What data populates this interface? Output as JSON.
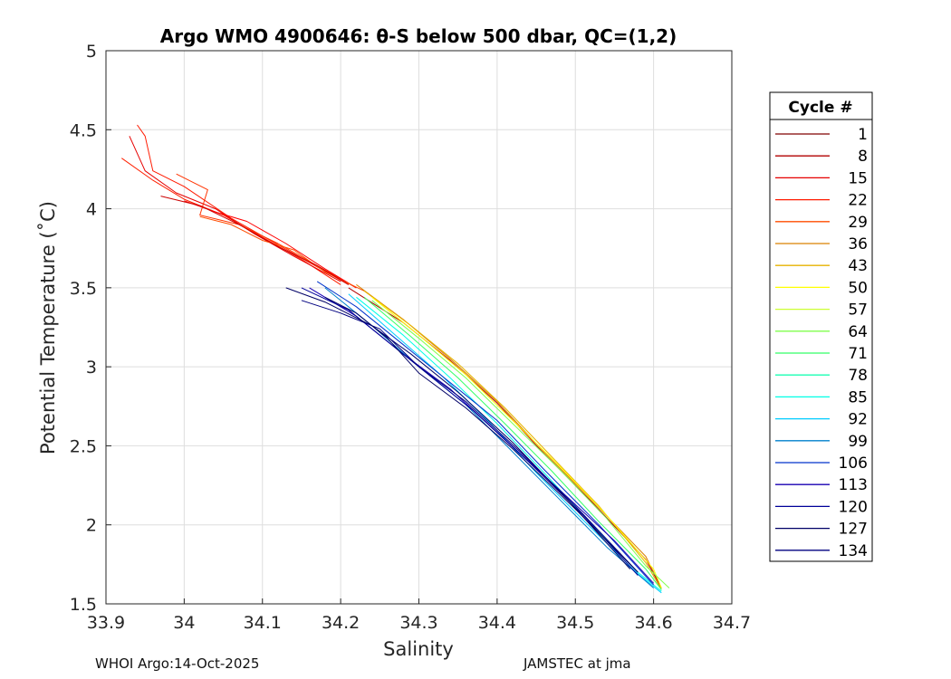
{
  "footer": {
    "left": "WHOI Argo:14-Oct-2025",
    "right": "JAMSTEC at jma"
  },
  "chart_data": {
    "type": "line",
    "title": "Argo WMO 4900646: θ-S below 500 dbar,  QC=(1,2)",
    "xlabel": "Salinity",
    "ylabel": "Potential Temperature (˚C)",
    "xlim": [
      33.9,
      34.7
    ],
    "ylim": [
      1.5,
      5
    ],
    "xticks": [
      33.9,
      34.0,
      34.1,
      34.2,
      34.3,
      34.4,
      34.5,
      34.6,
      34.7
    ],
    "xtick_labels": [
      "33.9",
      "34",
      "34.1",
      "34.2",
      "34.3",
      "34.4",
      "34.5",
      "34.6",
      "34.7"
    ],
    "yticks": [
      1.5,
      2,
      2.5,
      3,
      3.5,
      4,
      4.5,
      5
    ],
    "ytick_labels": [
      "1.5",
      "2",
      "2.5",
      "3",
      "3.5",
      "4",
      "4.5",
      "5"
    ],
    "grid": true,
    "legend": {
      "title": "Cycle #",
      "placement": "right",
      "entries": [
        {
          "label": "1",
          "color": "#800000"
        },
        {
          "label": "8",
          "color": "#b20000"
        },
        {
          "label": "15",
          "color": "#e60000"
        },
        {
          "label": "22",
          "color": "#ff1a00"
        },
        {
          "label": "29",
          "color": "#ff4d00"
        },
        {
          "label": "36",
          "color": "#d98000"
        },
        {
          "label": "43",
          "color": "#e6b300"
        },
        {
          "label": "50",
          "color": "#ffff00"
        },
        {
          "label": "57",
          "color": "#ccff33"
        },
        {
          "label": "64",
          "color": "#80ff4d"
        },
        {
          "label": "71",
          "color": "#33ff66"
        },
        {
          "label": "78",
          "color": "#1affb3"
        },
        {
          "label": "85",
          "color": "#00ffe6"
        },
        {
          "label": "92",
          "color": "#00ccff"
        },
        {
          "label": "99",
          "color": "#0080cc"
        },
        {
          "label": "106",
          "color": "#0033cc"
        },
        {
          "label": "113",
          "color": "#1a00b3"
        },
        {
          "label": "120",
          "color": "#000099"
        },
        {
          "label": "127",
          "color": "#000066"
        },
        {
          "label": "134",
          "color": "#000080"
        }
      ]
    },
    "series": [
      {
        "color": "#ff2000",
        "x": [
          33.92,
          33.96,
          34.0,
          34.05,
          34.1,
          34.15,
          34.2
        ],
        "y": [
          4.32,
          4.18,
          4.06,
          3.96,
          3.82,
          3.68,
          3.52
        ]
      },
      {
        "color": "#e60000",
        "x": [
          33.93,
          33.95,
          33.99,
          34.04,
          34.09,
          34.14,
          34.2
        ],
        "y": [
          4.46,
          4.24,
          4.1,
          4.0,
          3.84,
          3.7,
          3.54
        ]
      },
      {
        "color": "#ff1a00",
        "x": [
          33.94,
          33.95,
          33.96,
          34.0,
          34.06,
          34.11,
          34.16,
          34.21
        ],
        "y": [
          4.53,
          4.46,
          4.24,
          4.14,
          3.94,
          3.8,
          3.66,
          3.52
        ]
      },
      {
        "color": "#ff3300",
        "x": [
          33.99,
          34.03,
          34.02,
          34.07,
          34.12,
          34.17,
          34.22
        ],
        "y": [
          4.22,
          4.12,
          3.96,
          3.9,
          3.78,
          3.64,
          3.5
        ]
      },
      {
        "color": "#ff0000",
        "x": [
          34.0,
          34.04,
          34.08,
          34.13,
          34.18,
          34.22
        ],
        "y": [
          4.05,
          3.98,
          3.92,
          3.78,
          3.62,
          3.5
        ]
      },
      {
        "color": "#ff4d00",
        "x": [
          34.02,
          34.06,
          34.1,
          34.14,
          34.18,
          34.23
        ],
        "y": [
          3.95,
          3.9,
          3.8,
          3.74,
          3.6,
          3.48
        ]
      },
      {
        "color": "#cc0000",
        "x": [
          33.97,
          34.02,
          34.07,
          34.12,
          34.17,
          34.21
        ],
        "y": [
          4.08,
          4.02,
          3.9,
          3.76,
          3.64,
          3.52
        ]
      },
      {
        "color": "#d98000",
        "x": [
          34.22,
          34.28,
          34.34,
          34.4,
          34.46,
          34.52,
          34.59,
          34.61
        ],
        "y": [
          3.52,
          3.3,
          3.05,
          2.78,
          2.46,
          2.16,
          1.8,
          1.6
        ]
      },
      {
        "color": "#b20000",
        "x": [
          34.21,
          34.28,
          34.34,
          34.4,
          34.46,
          34.52,
          34.59,
          34.61
        ],
        "y": [
          3.5,
          3.28,
          3.04,
          2.77,
          2.45,
          2.15,
          1.78,
          1.6
        ]
      },
      {
        "color": "#e6b300",
        "x": [
          34.23,
          34.29,
          34.35,
          34.41,
          34.47,
          34.53,
          34.59,
          34.61
        ],
        "y": [
          3.48,
          3.26,
          3.02,
          2.74,
          2.43,
          2.12,
          1.76,
          1.59
        ]
      },
      {
        "color": "#ffff00",
        "x": [
          34.24,
          34.3,
          34.36,
          34.42,
          34.48,
          34.54,
          34.6,
          34.61
        ],
        "y": [
          3.44,
          3.2,
          2.95,
          2.66,
          2.37,
          2.06,
          1.72,
          1.6
        ]
      },
      {
        "color": "#80ff4d",
        "x": [
          34.24,
          34.3,
          34.36,
          34.42,
          34.48,
          34.54,
          34.59,
          34.62
        ],
        "y": [
          3.42,
          3.18,
          2.93,
          2.64,
          2.35,
          2.04,
          1.74,
          1.6
        ]
      },
      {
        "color": "#33ff66",
        "x": [
          34.23,
          34.29,
          34.35,
          34.41,
          34.47,
          34.53,
          34.59,
          34.61
        ],
        "y": [
          3.44,
          3.19,
          2.93,
          2.64,
          2.34,
          2.02,
          1.72,
          1.59
        ]
      },
      {
        "color": "#00ffe6",
        "x": [
          34.22,
          34.28,
          34.34,
          34.4,
          34.46,
          34.52,
          34.58,
          34.61
        ],
        "y": [
          3.44,
          3.2,
          2.93,
          2.64,
          2.33,
          2.01,
          1.7,
          1.58
        ]
      },
      {
        "color": "#00ccff",
        "x": [
          34.21,
          34.27,
          34.33,
          34.39,
          34.45,
          34.51,
          34.58,
          34.61
        ],
        "y": [
          3.46,
          3.2,
          2.94,
          2.65,
          2.33,
          2.03,
          1.69,
          1.57
        ]
      },
      {
        "color": "#0080cc",
        "x": [
          34.18,
          34.24,
          34.3,
          34.36,
          34.42,
          34.48,
          34.54,
          34.6
        ],
        "y": [
          3.5,
          3.26,
          3.0,
          2.76,
          2.46,
          2.16,
          1.86,
          1.6
        ]
      },
      {
        "color": "#0033cc",
        "x": [
          34.17,
          34.22,
          34.28,
          34.33,
          34.4,
          34.46,
          34.53,
          34.6
        ],
        "y": [
          3.54,
          3.38,
          3.14,
          2.94,
          2.66,
          2.35,
          2.0,
          1.62
        ]
      },
      {
        "color": "#1a00b3",
        "x": [
          34.16,
          34.22,
          34.28,
          34.34,
          34.41,
          34.48,
          34.55,
          34.6
        ],
        "y": [
          3.5,
          3.32,
          3.08,
          2.86,
          2.54,
          2.22,
          1.9,
          1.63
        ]
      },
      {
        "color": "#000099",
        "x": [
          34.15,
          34.21,
          34.26,
          34.31,
          34.37,
          34.44,
          34.51,
          34.58
        ],
        "y": [
          3.5,
          3.36,
          3.16,
          2.96,
          2.72,
          2.4,
          2.06,
          1.68
        ]
      },
      {
        "color": "#000066",
        "x": [
          34.13,
          34.18,
          34.24,
          34.29,
          34.35,
          34.42,
          34.49,
          34.57
        ],
        "y": [
          3.5,
          3.41,
          3.26,
          3.08,
          2.84,
          2.52,
          2.16,
          1.72
        ]
      },
      {
        "color": "#000080",
        "x": [
          34.15,
          34.2,
          34.25,
          34.3,
          34.36,
          34.43,
          34.5,
          34.58
        ],
        "y": [
          3.42,
          3.34,
          3.24,
          3.0,
          2.78,
          2.46,
          2.12,
          1.7
        ]
      },
      {
        "color": "#000066",
        "x": [
          34.18,
          34.22,
          34.26,
          34.3,
          34.36,
          34.42,
          34.5,
          34.58
        ],
        "y": [
          3.44,
          3.34,
          3.18,
          2.96,
          2.74,
          2.48,
          2.1,
          1.7
        ]
      }
    ]
  }
}
